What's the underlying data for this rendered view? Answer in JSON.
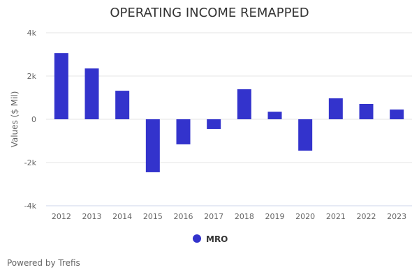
{
  "chart_data": {
    "type": "bar",
    "title": "OPERATING INCOME REMAPPED",
    "xlabel": "",
    "ylabel": "Values ($ Mil)",
    "ylim": [
      -4000,
      4000
    ],
    "yticks": [
      4000,
      2000,
      0,
      -2000,
      -4000
    ],
    "ytick_labels": [
      "4k",
      "2k",
      "0",
      "-2k",
      "-4k"
    ],
    "grid": true,
    "legend": "bottom",
    "categories": [
      "2012",
      "2013",
      "2014",
      "2015",
      "2016",
      "2017",
      "2018",
      "2019",
      "2020",
      "2021",
      "2022",
      "2023"
    ],
    "series": [
      {
        "name": "MRO",
        "color": "#3333CC",
        "values": [
          3060,
          2350,
          1320,
          -2450,
          -1160,
          -450,
          1390,
          350,
          -1450,
          970,
          710,
          450
        ]
      }
    ]
  },
  "footer": {
    "credit": "Powered by Trefis"
  }
}
